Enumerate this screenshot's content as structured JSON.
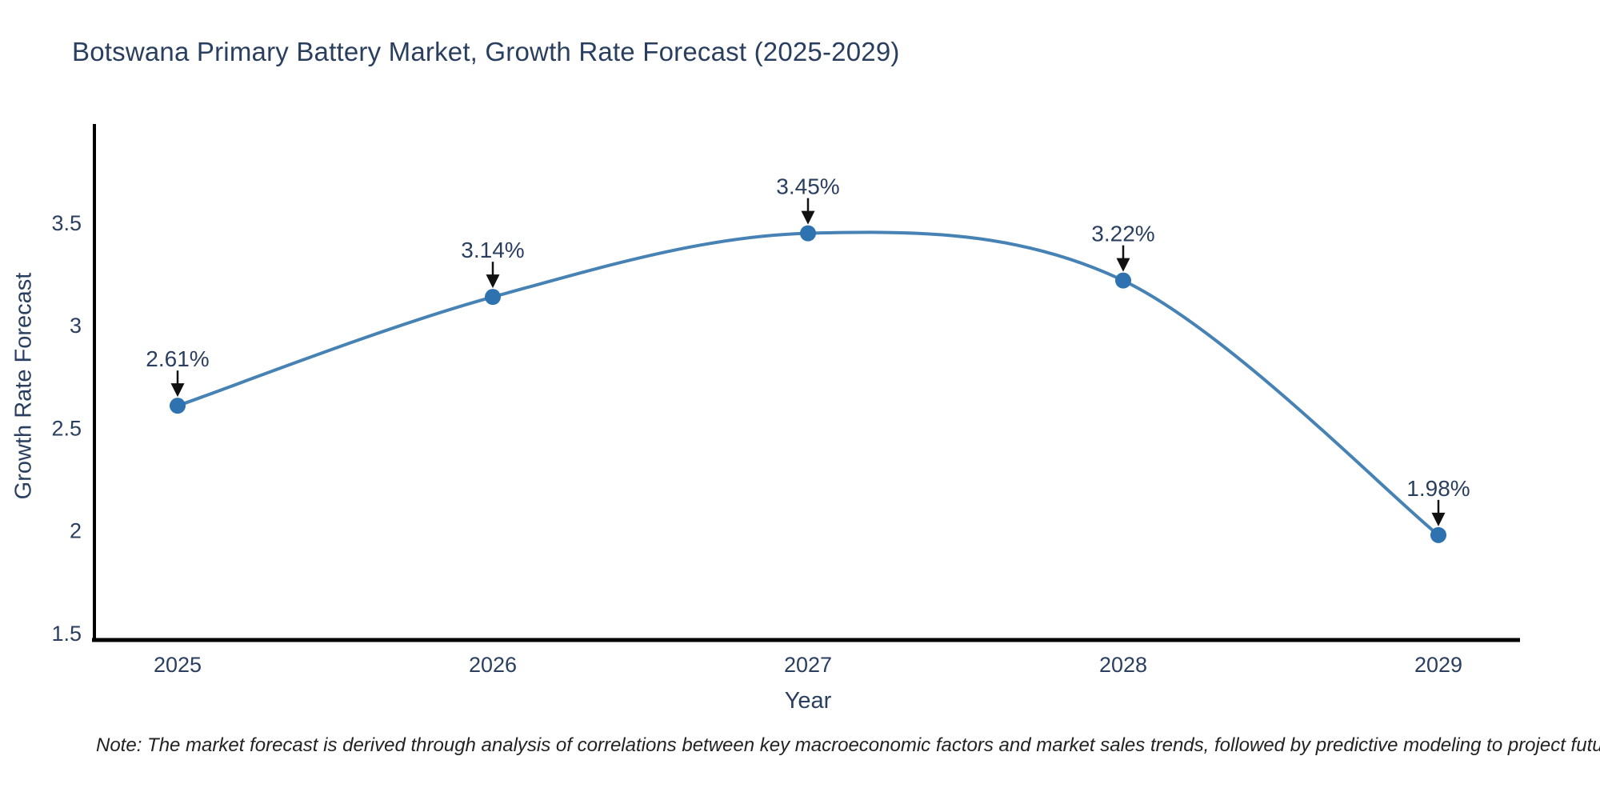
{
  "footer": {
    "note": "Note: The market forecast is derived through analysis of correlations between key macroeconomic factors and market sales trends, followed by predictive modeling to project future sales"
  },
  "chart_data": {
    "type": "line",
    "title": "Botswana Primary Battery Market, Growth Rate Forecast (2025-2029)",
    "xlabel": "Year",
    "ylabel": "Growth Rate Forecast",
    "x": [
      "2025",
      "2026",
      "2027",
      "2028",
      "2029"
    ],
    "series": [
      {
        "name": "Growth Rate Forecast",
        "values": [
          2.61,
          3.14,
          3.45,
          3.22,
          1.98
        ]
      }
    ],
    "point_labels": [
      "2.61%",
      "3.14%",
      "3.45%",
      "3.22%",
      "1.98%"
    ],
    "yticks": [
      1.5,
      2,
      2.5,
      3,
      3.5
    ],
    "ylim": [
      1.5,
      3.98
    ],
    "line_shape": "spline",
    "grid": false,
    "legend_visible": false,
    "annotation_style": "arrow-down-to-point",
    "colors": {
      "line": "#4682b4",
      "marker": "#2e72b0",
      "axis": "#000000",
      "text": "#2a3f5f",
      "arrow": "#111111",
      "note_text": "#222222"
    }
  }
}
